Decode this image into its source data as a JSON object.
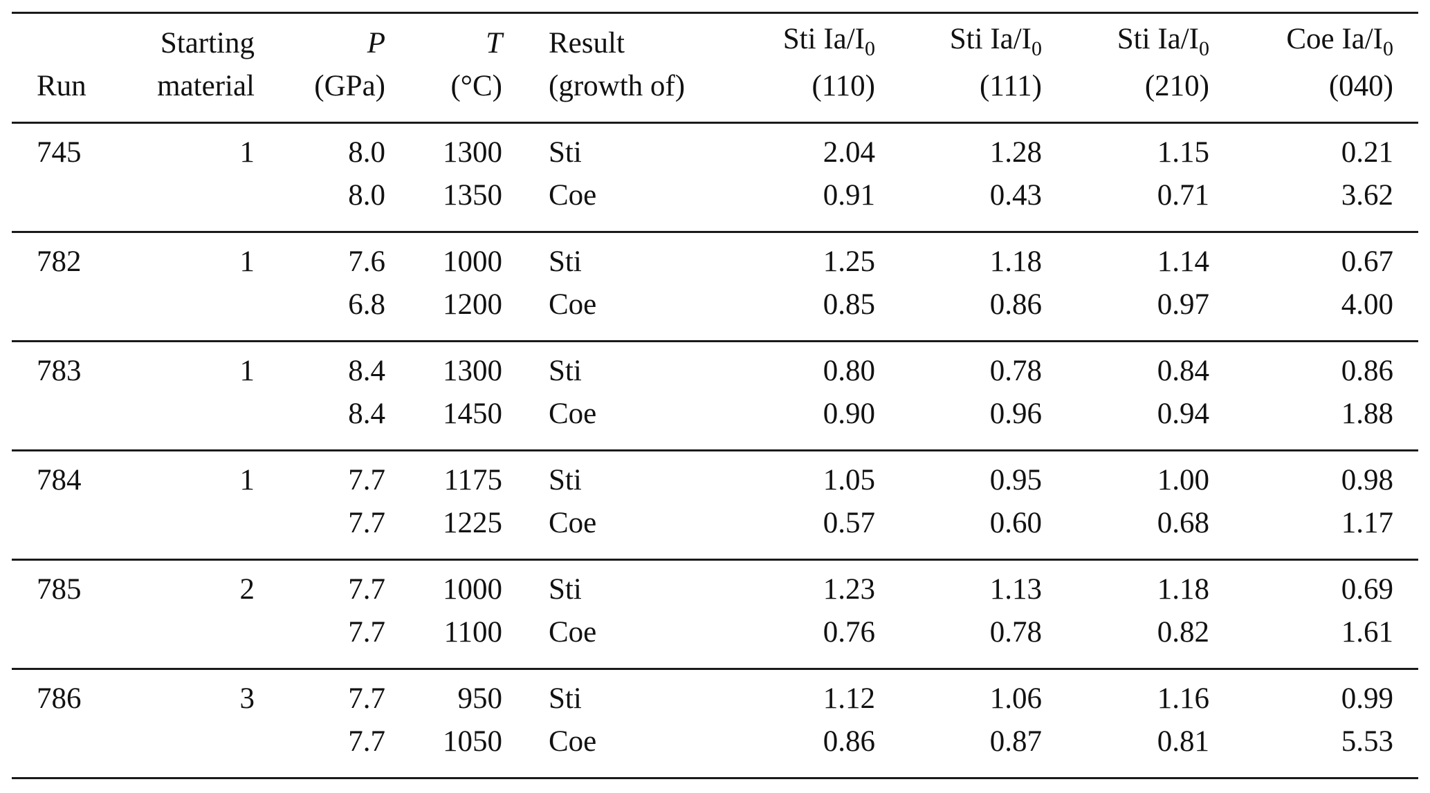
{
  "table": {
    "headers": [
      {
        "line1": "",
        "line2": "Run"
      },
      {
        "line1": "Starting",
        "line2": "material"
      },
      {
        "line1": "P",
        "line2": "(GPa)"
      },
      {
        "line1": "T",
        "line2": "(°C)"
      },
      {
        "line1": "Result",
        "line2": "(growth of)"
      },
      {
        "line1": "Sti Ia/I",
        "line1_sub": "0",
        "line2": "(110)"
      },
      {
        "line1": "Sti Ia/I",
        "line1_sub": "0",
        "line2": "(111)"
      },
      {
        "line1": "Sti Ia/I",
        "line1_sub": "0",
        "line2": "(210)"
      },
      {
        "line1": "Coe Ia/I",
        "line1_sub": "0",
        "line2": "(040)"
      }
    ],
    "groups": [
      {
        "run": "745",
        "material": "1",
        "rows": [
          {
            "p": "8.0",
            "t": "1300",
            "result": "Sti",
            "sti110": "2.04",
            "sti111": "1.28",
            "sti210": "1.15",
            "coe040": "0.21"
          },
          {
            "p": "8.0",
            "t": "1350",
            "result": "Coe",
            "sti110": "0.91",
            "sti111": "0.43",
            "sti210": "0.71",
            "coe040": "3.62"
          }
        ]
      },
      {
        "run": "782",
        "material": "1",
        "rows": [
          {
            "p": "7.6",
            "t": "1000",
            "result": "Sti",
            "sti110": "1.25",
            "sti111": "1.18",
            "sti210": "1.14",
            "coe040": "0.67"
          },
          {
            "p": "6.8",
            "t": "1200",
            "result": "Coe",
            "sti110": "0.85",
            "sti111": "0.86",
            "sti210": "0.97",
            "coe040": "4.00"
          }
        ]
      },
      {
        "run": "783",
        "material": "1",
        "rows": [
          {
            "p": "8.4",
            "t": "1300",
            "result": "Sti",
            "sti110": "0.80",
            "sti111": "0.78",
            "sti210": "0.84",
            "coe040": "0.86"
          },
          {
            "p": "8.4",
            "t": "1450",
            "result": "Coe",
            "sti110": "0.90",
            "sti111": "0.96",
            "sti210": "0.94",
            "coe040": "1.88"
          }
        ]
      },
      {
        "run": "784",
        "material": "1",
        "rows": [
          {
            "p": "7.7",
            "t": "1175",
            "result": "Sti",
            "sti110": "1.05",
            "sti111": "0.95",
            "sti210": "1.00",
            "coe040": "0.98"
          },
          {
            "p": "7.7",
            "t": "1225",
            "result": "Coe",
            "sti110": "0.57",
            "sti111": "0.60",
            "sti210": "0.68",
            "coe040": "1.17"
          }
        ]
      },
      {
        "run": "785",
        "material": "2",
        "rows": [
          {
            "p": "7.7",
            "t": "1000",
            "result": "Sti",
            "sti110": "1.23",
            "sti111": "1.13",
            "sti210": "1.18",
            "coe040": "0.69"
          },
          {
            "p": "7.7",
            "t": "1100",
            "result": "Coe",
            "sti110": "0.76",
            "sti111": "0.78",
            "sti210": "0.82",
            "coe040": "1.61"
          }
        ]
      },
      {
        "run": "786",
        "material": "3",
        "rows": [
          {
            "p": "7.7",
            "t": "950",
            "result": "Sti",
            "sti110": "1.12",
            "sti111": "1.06",
            "sti210": "1.16",
            "coe040": "0.99"
          },
          {
            "p": "7.7",
            "t": "1050",
            "result": "Coe",
            "sti110": "0.86",
            "sti111": "0.87",
            "sti210": "0.81",
            "coe040": "5.53"
          }
        ]
      }
    ]
  }
}
